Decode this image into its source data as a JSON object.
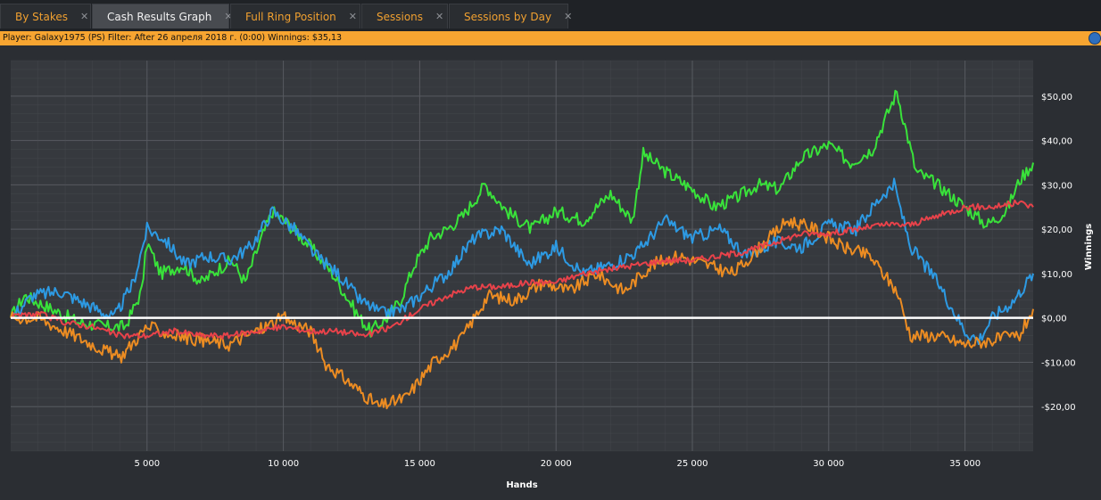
{
  "tabs": [
    {
      "label": "By Stakes",
      "active": false
    },
    {
      "label": "Cash Results Graph",
      "active": true
    },
    {
      "label": "Full Ring Position",
      "active": false
    },
    {
      "label": "Sessions",
      "active": false
    },
    {
      "label": "Sessions by Day",
      "active": false
    }
  ],
  "tab_close_glyph": "✕",
  "info": {
    "text": "Player: Galaxy1975 (PS) Filter:  After 26 апреля 2018 г. (0:00) Winnings: $35,13",
    "icon": "globe-icon"
  },
  "colors": {
    "background": "#2b2e33",
    "plot_bg": "#36393e",
    "grid": "#4a4d52",
    "info_bar": "#f7a531",
    "tab_text": "#f0a030"
  },
  "chart_data": {
    "type": "line",
    "xlabel": "Hands",
    "ylabel": "Winnings",
    "xlim": [
      0,
      37500
    ],
    "ylim": [
      -30,
      58
    ],
    "xticks": [
      5000,
      10000,
      15000,
      20000,
      25000,
      30000,
      35000
    ],
    "xtick_labels": [
      "5 000",
      "10 000",
      "15 000",
      "20 000",
      "25 000",
      "30 000",
      "35 000"
    ],
    "yticks": [
      -20,
      -10,
      0,
      10,
      20,
      30,
      40,
      50
    ],
    "ytick_labels": [
      "-$20,00",
      "-$10,00",
      "$0,00",
      "$10,00",
      "$20,00",
      "$30,00",
      "$40,00",
      "$50,00"
    ],
    "grid": true,
    "zero_line": true,
    "series": [
      {
        "color": "#39e23a",
        "x": [
          0,
          500,
          1500,
          2500,
          3500,
          4200,
          4800,
          5000,
          5500,
          6300,
          7000,
          7600,
          8100,
          8600,
          9200,
          9600,
          10200,
          11000,
          11800,
          12300,
          12800,
          13200,
          13800,
          14300,
          14800,
          15400,
          16000,
          16600,
          17400,
          18200,
          19100,
          20000,
          21000,
          22000,
          22800,
          23200,
          24000,
          25000,
          25800,
          26600,
          27400,
          28200,
          29000,
          30000,
          30800,
          31600,
          32500,
          33200,
          34000,
          35000,
          35800,
          36500,
          37000,
          37500
        ],
        "y": [
          0,
          5,
          2,
          -1,
          -2,
          -2,
          6,
          17,
          10,
          12,
          8,
          11,
          13,
          8,
          18,
          24,
          21,
          16,
          10,
          5,
          0,
          -3,
          0,
          4,
          12,
          18,
          20,
          23,
          30,
          24,
          20,
          24,
          22,
          28,
          22,
          37,
          33,
          29,
          25,
          27,
          30,
          29,
          36,
          39,
          35,
          38,
          51,
          33,
          30,
          25,
          21,
          24,
          31,
          35
        ]
      },
      {
        "color": "#2d9ae3",
        "x": [
          0,
          800,
          1800,
          2800,
          3800,
          4500,
          5000,
          5600,
          6400,
          7200,
          8000,
          8800,
          9600,
          10400,
          11200,
          12000,
          12800,
          13600,
          14400,
          15200,
          16000,
          17000,
          18000,
          19000,
          20000,
          21000,
          22000,
          23000,
          24000,
          25000,
          26000,
          27000,
          28000,
          29000,
          30000,
          31000,
          32000,
          32400,
          33000,
          34000,
          35000,
          35500,
          36000,
          36800,
          37500
        ],
        "y": [
          0,
          5,
          6,
          3,
          0,
          8,
          20,
          18,
          12,
          14,
          13,
          16,
          24,
          20,
          14,
          10,
          4,
          1,
          2,
          6,
          10,
          18,
          20,
          12,
          16,
          10,
          12,
          15,
          22,
          18,
          20,
          14,
          17,
          16,
          21,
          20,
          28,
          30,
          16,
          8,
          -3,
          -5,
          0,
          4,
          10
        ]
      },
      {
        "color": "#ec8c22",
        "x": [
          0,
          1000,
          2000,
          3000,
          4000,
          5000,
          6000,
          7000,
          8000,
          9000,
          10000,
          11000,
          11500,
          12500,
          13500,
          14500,
          15500,
          16500,
          17500,
          18500,
          19500,
          20500,
          21500,
          22500,
          23500,
          24500,
          25500,
          26500,
          27500,
          28500,
          29500,
          30500,
          31500,
          32500,
          33000,
          34000,
          35000,
          36000,
          37000,
          37500
        ],
        "y": [
          0,
          0,
          -3,
          -6,
          -9,
          -2,
          -4,
          -5,
          -6,
          -3,
          0,
          -3,
          -10,
          -15,
          -20,
          -18,
          -10,
          -5,
          5,
          4,
          8,
          6,
          10,
          6,
          12,
          14,
          12,
          10,
          16,
          22,
          20,
          16,
          14,
          6,
          -4,
          -4,
          -6,
          -5,
          -4,
          2
        ]
      },
      {
        "color": "#e8424a",
        "x": [
          0,
          1000,
          2000,
          3000,
          4000,
          5000,
          6000,
          7000,
          8000,
          9000,
          10000,
          11000,
          12000,
          13000,
          14000,
          15000,
          16000,
          17000,
          18000,
          19000,
          20000,
          21000,
          22000,
          23000,
          24000,
          25000,
          26000,
          27000,
          28000,
          29000,
          30000,
          31000,
          32000,
          33000,
          34000,
          35000,
          36000,
          37000,
          37500
        ],
        "y": [
          0,
          1,
          -1,
          -2,
          -4,
          -4,
          -3,
          -4,
          -4,
          -3,
          -2,
          -3,
          -3,
          -4,
          -2,
          2,
          5,
          7,
          7,
          8,
          8,
          10,
          11,
          12,
          13,
          13,
          14,
          15,
          17,
          19,
          19,
          20,
          21,
          21,
          23,
          25,
          25,
          26,
          25
        ]
      }
    ]
  }
}
